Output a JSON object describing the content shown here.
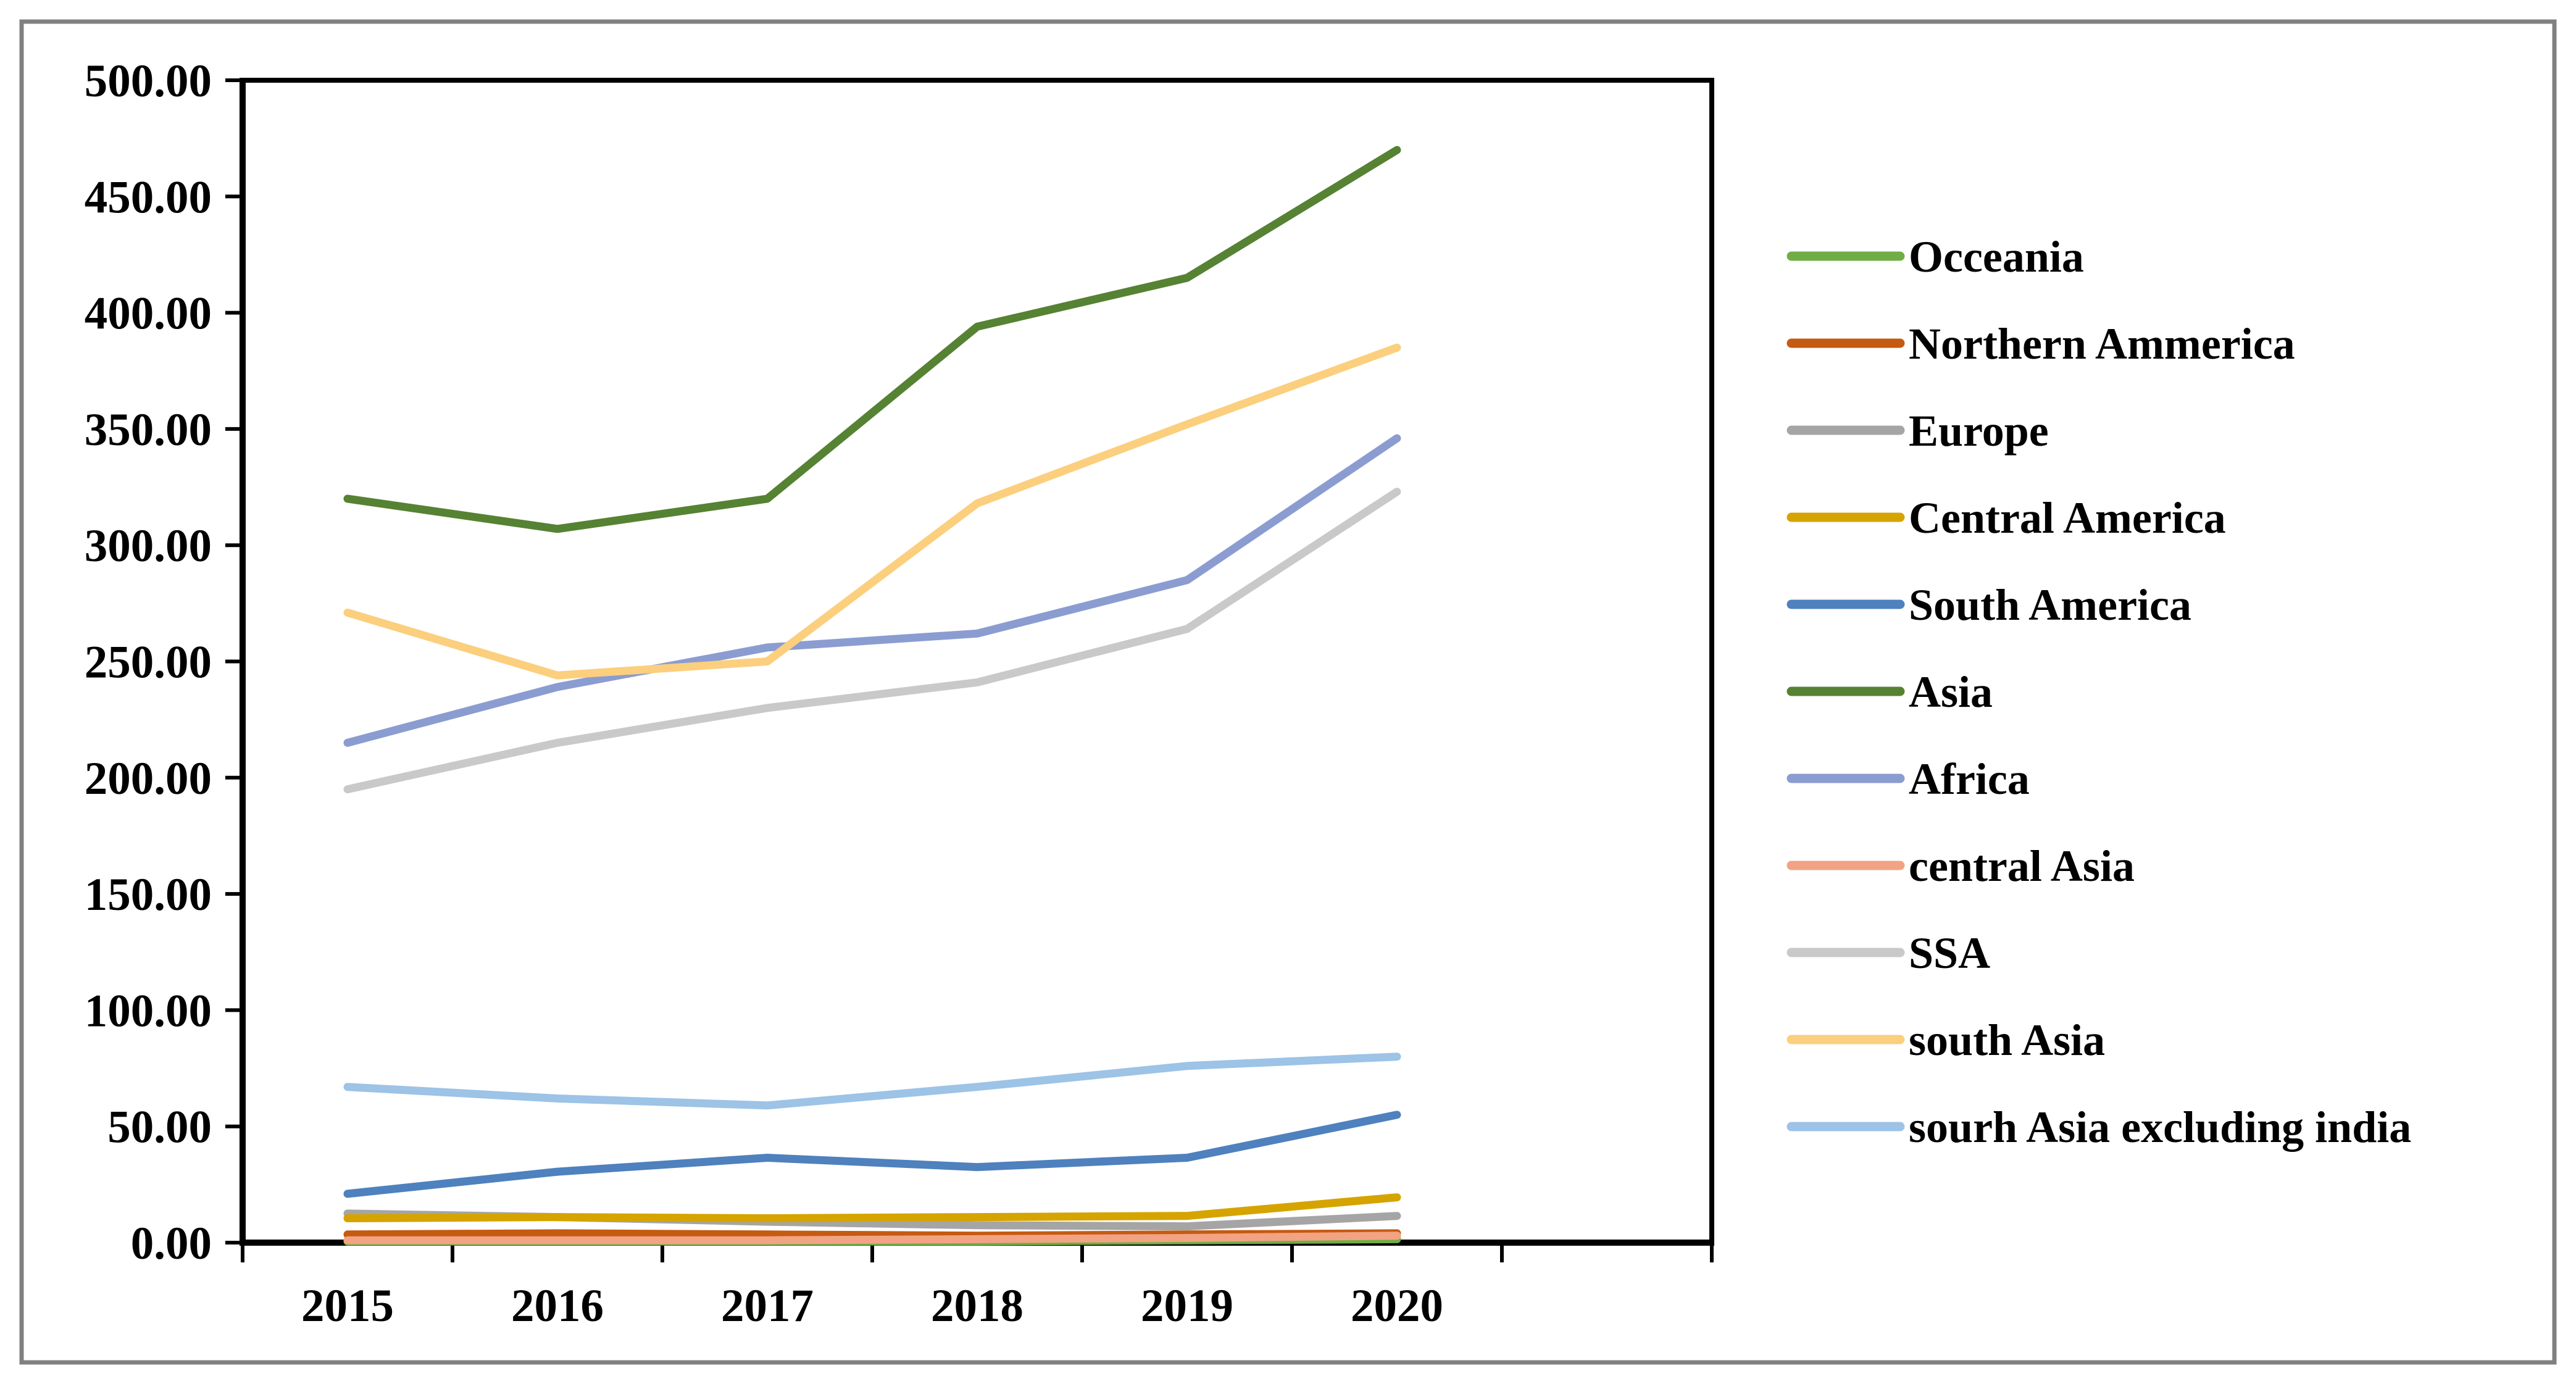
{
  "figure": {
    "background_color": "#FFFFFF",
    "outer_border_color": "#808080",
    "axis_color": "#000000",
    "tick_label_color": "#000000"
  },
  "chart_data": {
    "type": "line",
    "title": "",
    "xlabel": "",
    "ylabel": "",
    "grid": false,
    "legend_position": "right",
    "categories": [
      "2015",
      "2016",
      "2017",
      "2018",
      "2019",
      "2020"
    ],
    "y_axis": {
      "min": 0,
      "max": 500,
      "step": 50,
      "tick_labels": [
        "0.00",
        "50.00",
        "100.00",
        "150.00",
        "200.00",
        "250.00",
        "300.00",
        "350.00",
        "400.00",
        "450.00",
        "500.00"
      ]
    },
    "series": [
      {
        "name": "Occeania",
        "color": "#70AD47",
        "values": [
          0.5,
          0.5,
          0.5,
          0.5,
          1.0,
          1.5
        ]
      },
      {
        "name": "Northern Ammerica",
        "color": "#C55A11",
        "values": [
          3.5,
          4.0,
          3.5,
          3.0,
          3.5,
          4.0
        ]
      },
      {
        "name": "Europe",
        "color": "#A5A5A5",
        "values": [
          12.5,
          11.0,
          9.0,
          7.5,
          7.0,
          11.5
        ]
      },
      {
        "name": "Central America",
        "color": "#D5A400",
        "values": [
          10.5,
          11.0,
          10.5,
          11.0,
          11.5,
          19.5
        ]
      },
      {
        "name": "South America",
        "color": "#4E81BD",
        "values": [
          21.0,
          30.5,
          36.5,
          32.5,
          36.5,
          55.0
        ]
      },
      {
        "name": "Asia",
        "color": "#568233",
        "values": [
          320.0,
          307.0,
          320.0,
          394.0,
          415.0,
          470.0
        ]
      },
      {
        "name": "Africa",
        "color": "#8B9CD1",
        "values": [
          215.0,
          239.0,
          256.0,
          262.0,
          285.0,
          346.0
        ]
      },
      {
        "name": "central Asia",
        "color": "#F2A383",
        "values": [
          1.0,
          1.0,
          1.0,
          1.5,
          2.0,
          3.0
        ]
      },
      {
        "name": "SSA",
        "color": "#C9C9C9",
        "values": [
          195.0,
          215.0,
          230.0,
          241.0,
          264.0,
          323.0
        ]
      },
      {
        "name": "south Asia",
        "color": "#FBCF7D",
        "values": [
          271.0,
          244.0,
          250.0,
          318.0,
          352.0,
          385.0
        ]
      },
      {
        "name": "sourh Asia excluding india",
        "color": "#9DC3E6",
        "values": [
          67.0,
          62.0,
          59.0,
          67.0,
          76.0,
          80.0
        ]
      }
    ]
  }
}
